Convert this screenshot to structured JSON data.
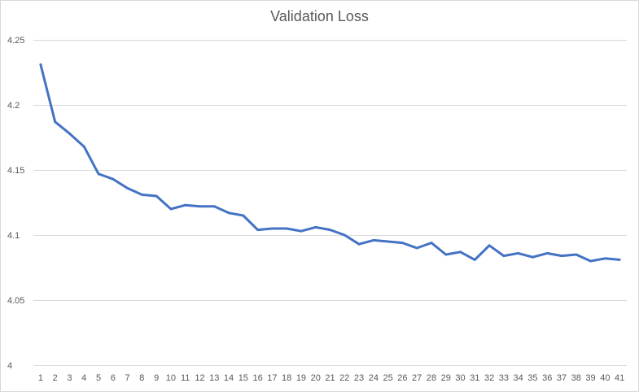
{
  "chart_data": {
    "type": "line",
    "title": "Validation Loss",
    "xlabel": "",
    "ylabel": "",
    "ylim": [
      4,
      4.25
    ],
    "yticks": [
      4,
      4.05,
      4.1,
      4.15,
      4.2,
      4.25
    ],
    "ytick_labels": [
      "4",
      "4.05",
      "4.1",
      "4.15",
      "4.2",
      "4.25"
    ],
    "grid": true,
    "legend": "none",
    "series_color": "#4472C4",
    "categories": [
      "1",
      "2",
      "3",
      "4",
      "5",
      "6",
      "7",
      "8",
      "9",
      "10",
      "11",
      "12",
      "13",
      "14",
      "15",
      "16",
      "17",
      "18",
      "19",
      "20",
      "21",
      "22",
      "23",
      "24",
      "25",
      "26",
      "27",
      "28",
      "29",
      "30",
      "31",
      "32",
      "33",
      "34",
      "35",
      "36",
      "37",
      "38",
      "39",
      "40",
      "41"
    ],
    "series": [
      {
        "values": [
          4.231,
          4.187,
          4.178,
          4.168,
          4.147,
          4.143,
          4.136,
          4.131,
          4.13,
          4.12,
          4.123,
          4.122,
          4.122,
          4.117,
          4.115,
          4.104,
          4.105,
          4.105,
          4.103,
          4.106,
          4.104,
          4.1,
          4.093,
          4.096,
          4.095,
          4.094,
          4.09,
          4.094,
          4.085,
          4.087,
          4.081,
          4.092,
          4.084,
          4.086,
          4.083,
          4.086,
          4.084,
          4.085,
          4.08,
          4.082,
          4.081
        ]
      }
    ]
  }
}
